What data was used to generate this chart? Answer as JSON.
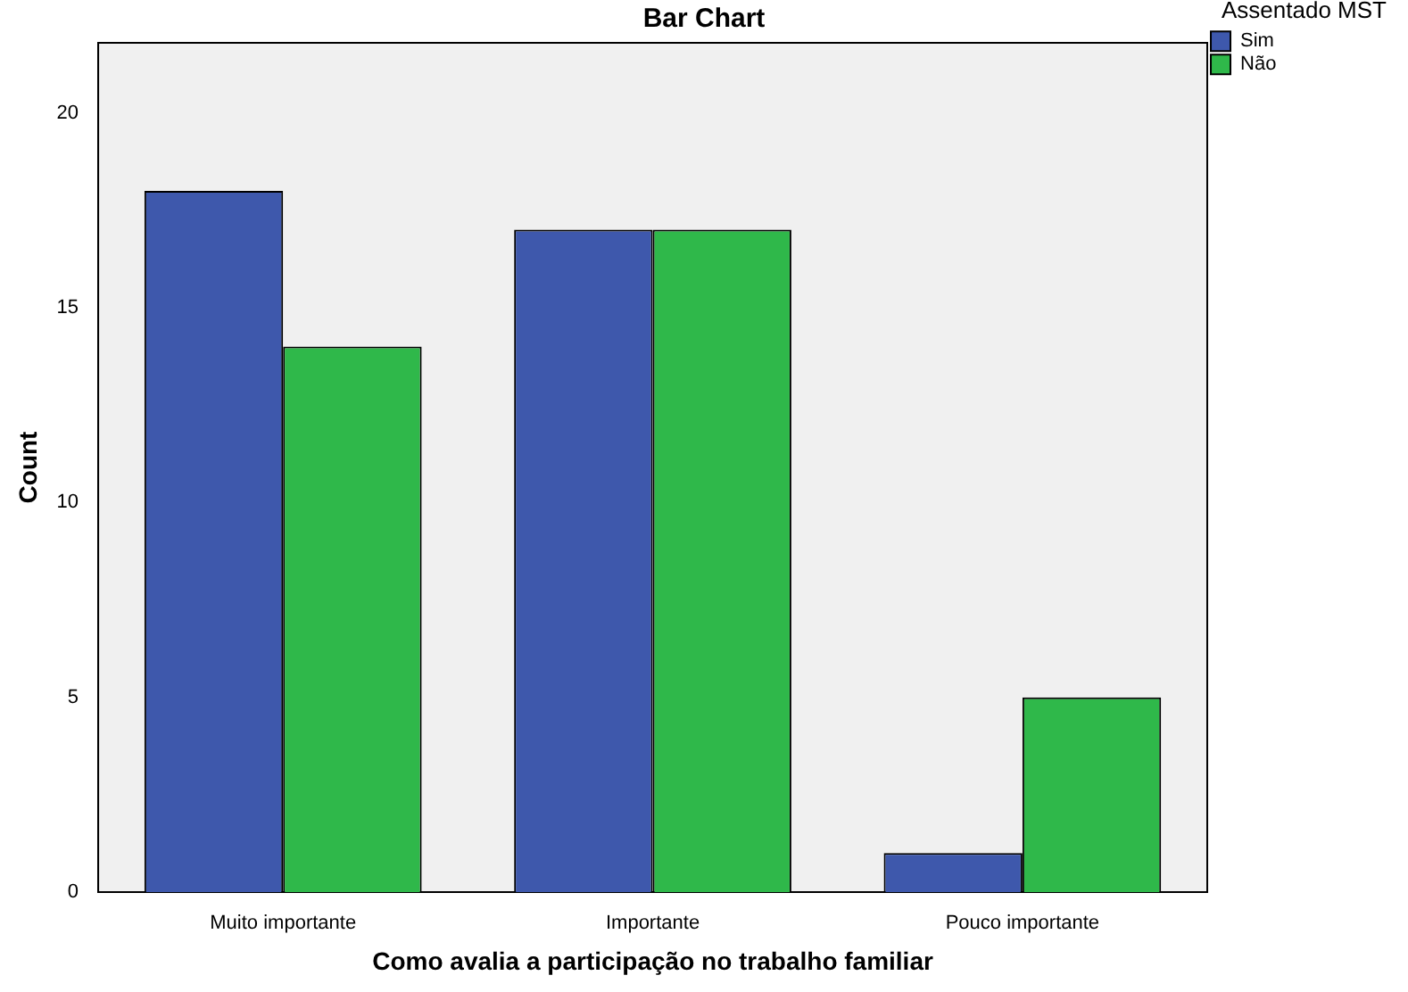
{
  "chart_data": {
    "type": "bar",
    "title": "Bar Chart",
    "xlabel": "Como avalia a participação no trabalho familiar",
    "ylabel": "Count",
    "legend_title": "Assentado MST",
    "categories": [
      "Muito importante",
      "Importante",
      "Pouco importante"
    ],
    "series": [
      {
        "name": "Sim",
        "color": "#3e58ac",
        "values": [
          18,
          17,
          1
        ]
      },
      {
        "name": "Não",
        "color": "#2fb84a",
        "values": [
          14,
          17,
          5
        ]
      }
    ],
    "ylim": [
      0,
      21.8
    ],
    "yticks": [
      0,
      5,
      10,
      15,
      20
    ],
    "grid": false,
    "legend": "top right"
  }
}
